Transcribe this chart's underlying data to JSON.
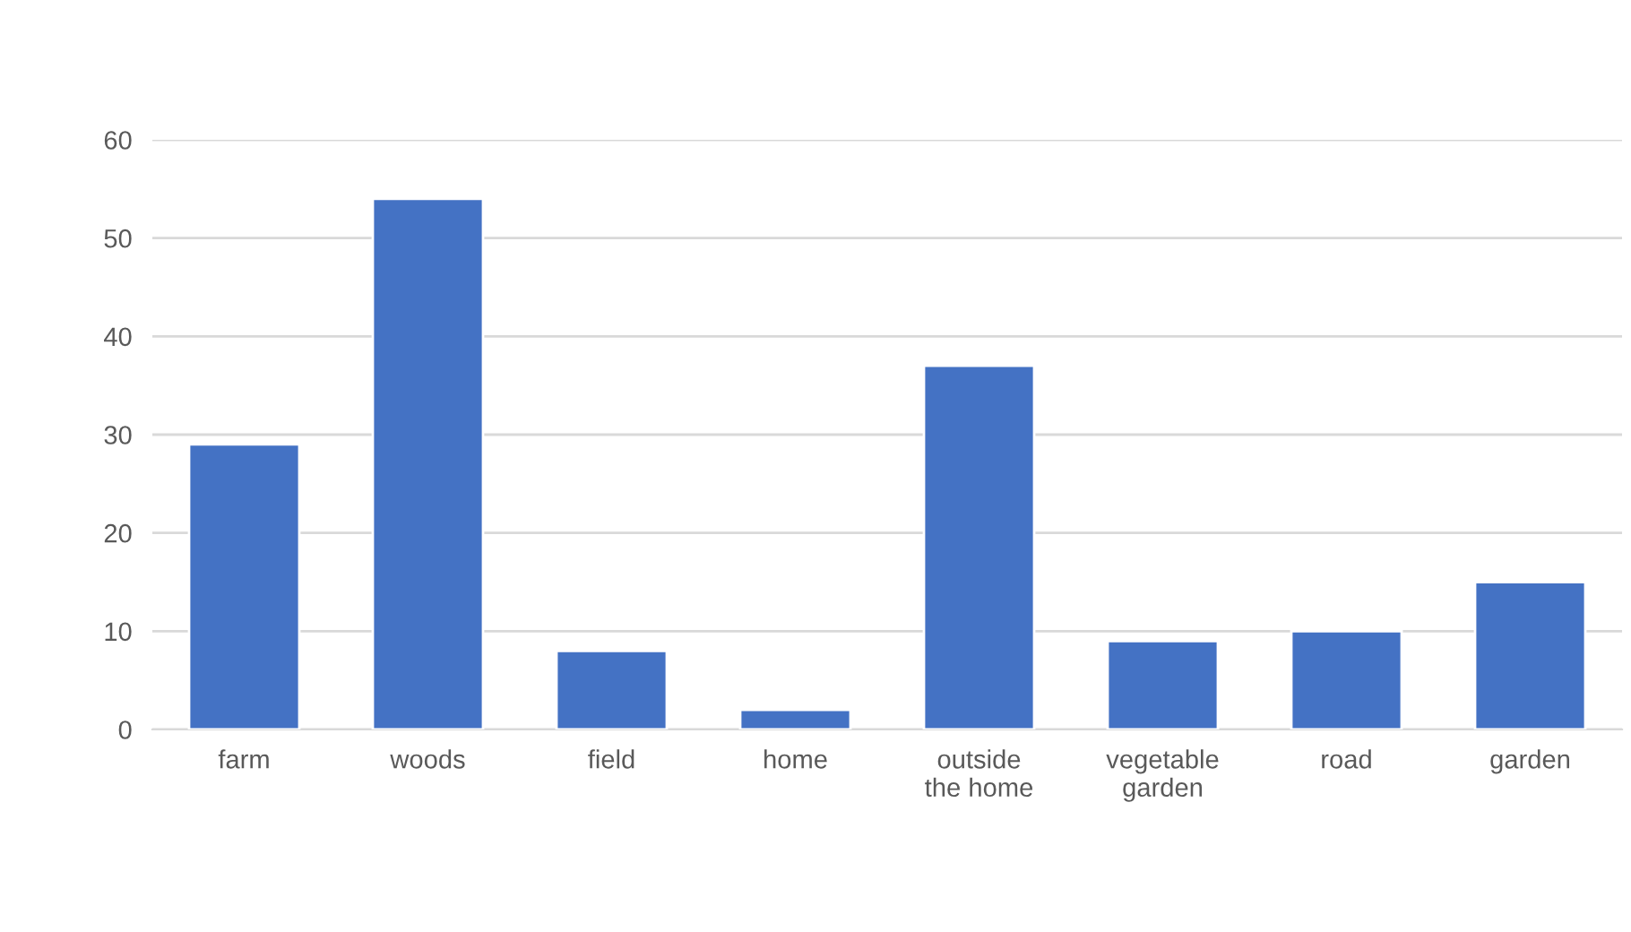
{
  "chart_data": {
    "type": "bar",
    "categories": [
      "farm",
      "woods",
      "field",
      "home",
      "outside the home",
      "vegetable garden",
      "road",
      "garden"
    ],
    "values": [
      29,
      54,
      8,
      2,
      37,
      9,
      10,
      15
    ],
    "color": "#4472c4",
    "ylim": [
      0,
      60
    ],
    "yticks": [
      0,
      10,
      20,
      30,
      40,
      50,
      60
    ],
    "grid": "y",
    "legend": false
  }
}
